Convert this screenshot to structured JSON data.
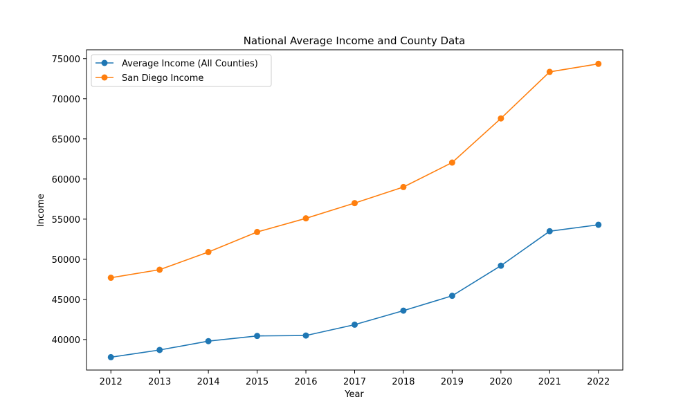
{
  "chart_data": {
    "type": "line",
    "title": "National Average Income and County Data",
    "xlabel": "Year",
    "ylabel": "Income",
    "x": [
      2012,
      2013,
      2014,
      2015,
      2016,
      2017,
      2018,
      2019,
      2020,
      2021,
      2022
    ],
    "x_ticks": [
      "2012",
      "2013",
      "2014",
      "2015",
      "2016",
      "2017",
      "2018",
      "2019",
      "2020",
      "2021",
      "2022"
    ],
    "ylim": [
      36200,
      76100
    ],
    "y_ticks": [
      40000,
      45000,
      50000,
      55000,
      60000,
      65000,
      70000,
      75000
    ],
    "y_tick_labels": [
      "40000",
      "45000",
      "50000",
      "55000",
      "60000",
      "65000",
      "70000",
      "75000"
    ],
    "grid": false,
    "legend_position": "upper-left",
    "series": [
      {
        "name": "Average Income (All Counties)",
        "color": "#1f77b4",
        "marker": "circle",
        "values": [
          37800,
          38700,
          39800,
          40450,
          40500,
          41850,
          43600,
          45450,
          49200,
          53500,
          54300
        ]
      },
      {
        "name": "San Diego Income",
        "color": "#ff7f0e",
        "marker": "circle",
        "values": [
          47700,
          48700,
          50900,
          53400,
          55100,
          57000,
          59000,
          62050,
          67550,
          73350,
          74350
        ]
      }
    ]
  }
}
